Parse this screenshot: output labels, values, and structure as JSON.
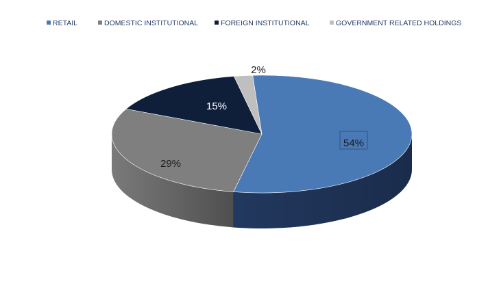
{
  "chart_data": {
    "type": "pie",
    "style": "3d",
    "categories": [
      "RETAIL",
      "DOMESTIC INSTITUTIONAL",
      "FOREIGN INSTITUTIONAL",
      "GOVERNMENT RELATED HOLDINGS"
    ],
    "values": [
      54,
      29,
      15,
      2
    ],
    "data_labels": [
      "54%",
      "29%",
      "15%",
      "2%"
    ],
    "unit": "%",
    "colors": [
      "#4a7ab5",
      "#7f7f7f",
      "#0f1f3a",
      "#bfbfbf"
    ],
    "legend": "top",
    "title": ""
  }
}
